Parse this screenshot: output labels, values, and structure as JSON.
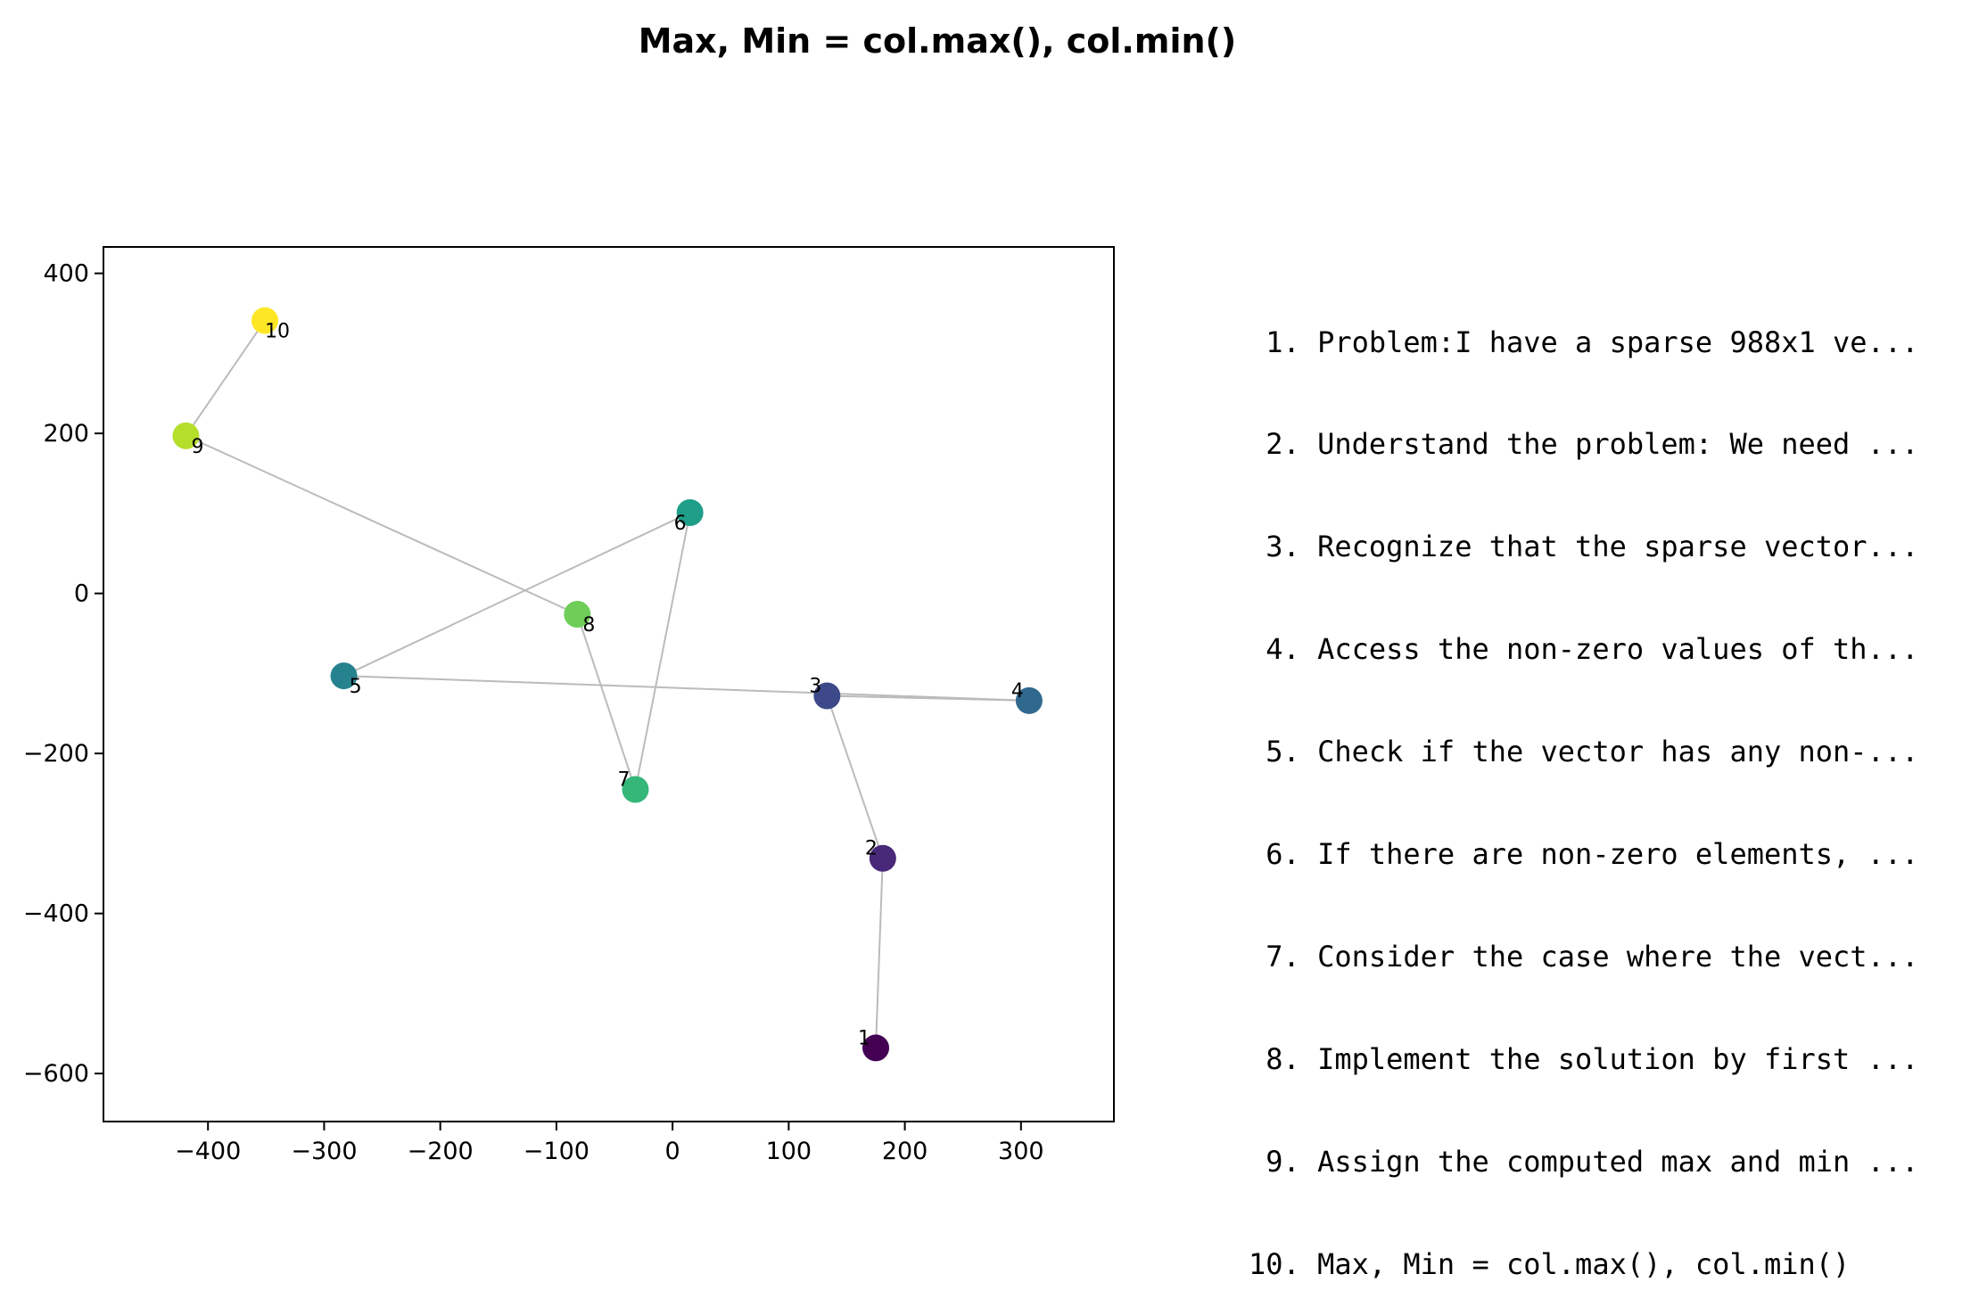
{
  "chart_data": {
    "type": "scatter",
    "title": "Max, Min = col.max(), col.min()",
    "xlabel": "",
    "ylabel": "",
    "xlim": [
      -490,
      380
    ],
    "ylim": [
      -660,
      433
    ],
    "xticks": [
      -400,
      -300,
      -200,
      -100,
      0,
      100,
      200,
      300
    ],
    "yticks": [
      -600,
      -400,
      -200,
      0,
      200,
      400
    ],
    "grid": false,
    "colormap": "viridis",
    "line_color": "#bbbbbb",
    "points": [
      {
        "label": "1",
        "x": 175,
        "y": -568,
        "color": "#440154"
      },
      {
        "label": "2",
        "x": 181,
        "y": -331,
        "color": "#482878"
      },
      {
        "label": "3",
        "x": 133,
        "y": -128,
        "color": "#3e4989"
      },
      {
        "label": "4",
        "x": 307,
        "y": -134,
        "color": "#31688e"
      },
      {
        "label": "5",
        "x": -283,
        "y": -103,
        "color": "#26828e"
      },
      {
        "label": "6",
        "x": 15,
        "y": 101,
        "color": "#1f9e89"
      },
      {
        "label": "7",
        "x": -32,
        "y": -245,
        "color": "#35b779"
      },
      {
        "label": "8",
        "x": -82,
        "y": -26,
        "color": "#6ece58"
      },
      {
        "label": "9",
        "x": -419,
        "y": 197,
        "color": "#b5de2b"
      },
      {
        "label": "10",
        "x": -351,
        "y": 341,
        "color": "#fde725"
      }
    ]
  },
  "steps": [
    " 1. Problem:I have a sparse 988x1 ve...",
    " 2. Understand the problem: We need ...",
    " 3. Recognize that the sparse vector...",
    " 4. Access the non-zero values of th...",
    " 5. Check if the vector has any non-...",
    " 6. If there are non-zero elements, ...",
    " 7. Consider the case where the vect...",
    " 8. Implement the solution by first ...",
    " 9. Assign the computed max and min ...",
    "10. Max, Min = col.max(), col.min()"
  ]
}
